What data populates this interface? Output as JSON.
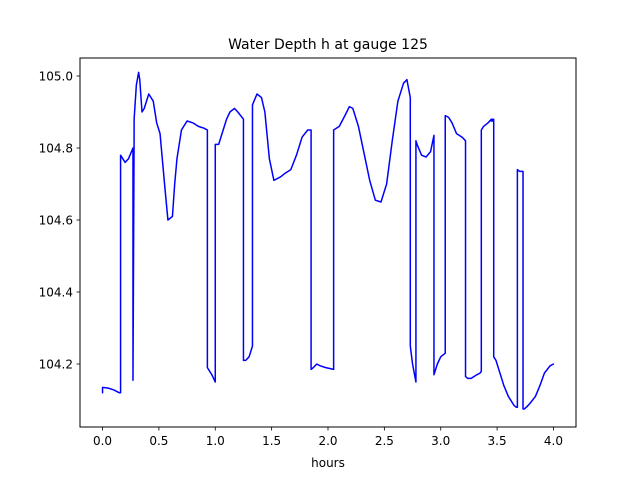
{
  "chart_data": {
    "type": "line",
    "title": "Water Depth h at gauge 125",
    "xlabel": "hours",
    "ylabel": "",
    "xlim": [
      -0.2,
      4.2
    ],
    "ylim": [
      104.025,
      105.05
    ],
    "xticks": [
      0.0,
      0.5,
      1.0,
      1.5,
      2.0,
      2.5,
      3.0,
      3.5,
      4.0
    ],
    "xtick_labels": [
      "0.0",
      "0.5",
      "1.0",
      "1.5",
      "2.0",
      "2.5",
      "3.0",
      "3.5",
      "4.0"
    ],
    "yticks": [
      104.2,
      104.4,
      104.6,
      104.8,
      105.0
    ],
    "ytick_labels": [
      "104.2",
      "104.4",
      "104.6",
      "104.8",
      "105.0"
    ],
    "grid": false,
    "legend": "none",
    "series": [
      {
        "color": "#0000ff",
        "x": [
          0.0,
          0.0,
          0.05,
          0.1,
          0.15,
          0.16,
          0.16,
          0.2,
          0.23,
          0.27,
          0.27,
          0.27,
          0.28,
          0.28,
          0.3,
          0.32,
          0.33,
          0.35,
          0.37,
          0.41,
          0.45,
          0.48,
          0.51,
          0.55,
          0.58,
          0.62,
          0.64,
          0.66,
          0.7,
          0.75,
          0.8,
          0.85,
          0.9,
          0.93,
          0.93,
          0.97,
          1.0,
          1.0,
          1.03,
          1.06,
          1.1,
          1.13,
          1.17,
          1.2,
          1.25,
          1.25,
          1.27,
          1.3,
          1.33,
          1.33,
          1.37,
          1.41,
          1.44,
          1.48,
          1.52,
          1.58,
          1.62,
          1.67,
          1.72,
          1.77,
          1.82,
          1.85,
          1.85,
          1.87,
          1.9,
          1.93,
          1.98,
          2.05,
          2.05,
          2.1,
          2.15,
          2.19,
          2.22,
          2.27,
          2.33,
          2.37,
          2.42,
          2.47,
          2.52,
          2.57,
          2.62,
          2.67,
          2.7,
          2.73,
          2.73,
          2.73,
          2.75,
          2.78,
          2.78,
          2.79,
          2.83,
          2.87,
          2.91,
          2.94,
          2.94,
          2.97,
          3.0,
          3.04,
          3.04,
          3.07,
          3.1,
          3.14,
          3.19,
          3.22,
          3.22,
          3.24,
          3.27,
          3.32,
          3.35,
          3.36,
          3.36,
          3.38,
          3.42,
          3.45,
          3.45,
          3.46,
          3.46,
          3.47,
          3.47,
          3.49,
          3.52,
          3.56,
          3.6,
          3.65,
          3.67,
          3.68,
          3.68,
          3.7,
          3.73,
          3.73,
          3.74,
          3.76,
          3.79,
          3.84,
          3.88,
          3.92,
          3.97,
          4.0
        ],
        "y": [
          104.12,
          104.135,
          104.133,
          104.128,
          104.12,
          104.12,
          104.78,
          104.76,
          104.77,
          104.8,
          104.16,
          104.155,
          104.84,
          104.88,
          104.975,
          105.01,
          104.99,
          104.9,
          104.91,
          104.95,
          104.93,
          104.87,
          104.84,
          104.7,
          104.6,
          104.61,
          104.7,
          104.77,
          104.85,
          104.875,
          104.87,
          104.86,
          104.855,
          104.85,
          104.19,
          104.17,
          104.15,
          104.81,
          104.81,
          104.84,
          104.88,
          104.9,
          104.91,
          104.9,
          104.88,
          104.21,
          104.21,
          104.22,
          104.25,
          104.92,
          104.95,
          104.94,
          104.9,
          104.77,
          104.71,
          104.72,
          104.73,
          104.74,
          104.78,
          104.83,
          104.85,
          104.85,
          104.185,
          104.19,
          104.2,
          104.195,
          104.19,
          104.185,
          104.85,
          104.86,
          104.89,
          104.915,
          104.91,
          104.86,
          104.77,
          104.71,
          104.655,
          104.65,
          104.7,
          104.82,
          104.93,
          104.98,
          104.99,
          104.94,
          104.92,
          104.25,
          104.2,
          104.15,
          104.82,
          104.81,
          104.78,
          104.775,
          104.79,
          104.835,
          104.17,
          104.2,
          104.22,
          104.23,
          104.89,
          104.885,
          104.87,
          104.84,
          104.83,
          104.82,
          104.165,
          104.16,
          104.16,
          104.17,
          104.175,
          104.18,
          104.85,
          104.86,
          104.87,
          104.88,
          104.875,
          104.875,
          104.88,
          104.88,
          104.22,
          104.21,
          104.18,
          104.14,
          104.11,
          104.085,
          104.08,
          104.08,
          104.74,
          104.735,
          104.735,
          104.075,
          104.075,
          104.08,
          104.09,
          104.11,
          104.14,
          104.175,
          104.195,
          104.2
        ]
      }
    ]
  }
}
